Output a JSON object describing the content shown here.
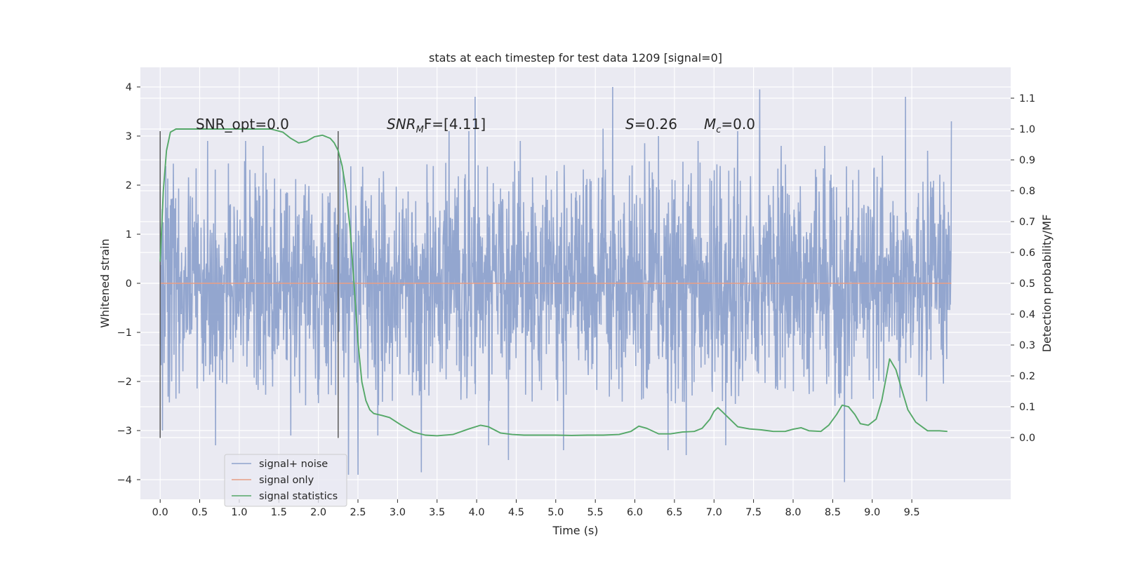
{
  "chart_data": {
    "type": "line",
    "title": "stats at each timestep for test data 1209 [signal=0]",
    "xlabel": "Time (s)",
    "ylabel_left": "Whitened strain",
    "ylabel_right": "Detection probability/MF",
    "xlim": [
      -0.25,
      10.75
    ],
    "ylim_left": [
      -4.4,
      4.4
    ],
    "ylim_right": [
      -0.2,
      1.2
    ],
    "x_ticks": [
      0.0,
      0.5,
      1.0,
      1.5,
      2.0,
      2.5,
      3.0,
      3.5,
      4.0,
      4.5,
      5.0,
      5.5,
      6.0,
      6.5,
      7.0,
      7.5,
      8.0,
      8.5,
      9.0,
      9.5
    ],
    "x_tick_labels": [
      "0.0",
      "0.5",
      "1.0",
      "1.5",
      "2.0",
      "2.5",
      "3.0",
      "3.5",
      "4.0",
      "4.5",
      "5.0",
      "5.5",
      "6.0",
      "6.5",
      "7.0",
      "7.5",
      "8.0",
      "8.5",
      "9.0",
      "9.5"
    ],
    "y_left_ticks": [
      -4,
      -3,
      -2,
      -1,
      0,
      1,
      2,
      3,
      4
    ],
    "y_left_tick_labels": [
      "−4",
      "−3",
      "−2",
      "−1",
      "0",
      "1",
      "2",
      "3",
      "4"
    ],
    "y_right_ticks": [
      0.0,
      0.1,
      0.2,
      0.3,
      0.4,
      0.5,
      0.6,
      0.7,
      0.8,
      0.9,
      1.0,
      1.1
    ],
    "y_right_tick_labels": [
      "0.0",
      "0.1",
      "0.2",
      "0.3",
      "0.4",
      "0.5",
      "0.6",
      "0.7",
      "0.8",
      "0.9",
      "1.0",
      "1.1"
    ],
    "grid": true,
    "legend": {
      "position": "lower-left",
      "entries": [
        {
          "label": "signal+ noise",
          "color": "#8ea2cc"
        },
        {
          "label": "signal only",
          "color": "#e89e85"
        },
        {
          "label": "signal statistics",
          "color": "#55a868"
        }
      ]
    },
    "annotations": {
      "snr_opt": "SNR_opt=0.0",
      "snr_mf_main": "SNR",
      "snr_mf_sub": "M",
      "snr_mf_rest": "F=[4.11]",
      "s_main": "S",
      "s_rest": "=0.26",
      "mc_main": "M",
      "mc_sub": "c",
      "mc_rest": "=0.0"
    },
    "vertical_markers": [
      {
        "x": 0.0,
        "y_range": [
          -3.15,
          3.1
        ],
        "color": "#595959"
      },
      {
        "x": 2.25,
        "y_range": [
          -3.15,
          3.1
        ],
        "color": "#595959"
      }
    ],
    "series": [
      {
        "name": "signal+ noise",
        "axis": "left",
        "color": "#8ea2cc",
        "x_range": [
          0.0,
          10.0
        ],
        "typical_amplitude": 1.3,
        "envelope_amplitude": 2.0,
        "spikes": [
          {
            "x": 0.03,
            "y": -3.0
          },
          {
            "x": 0.6,
            "y": 2.9
          },
          {
            "x": 0.7,
            "y": -3.3
          },
          {
            "x": 1.08,
            "y": 2.9
          },
          {
            "x": 1.3,
            "y": 2.8
          },
          {
            "x": 1.65,
            "y": -3.1
          },
          {
            "x": 2.27,
            "y": 2.5
          },
          {
            "x": 2.38,
            "y": -3.9
          },
          {
            "x": 2.5,
            "y": -3.9
          },
          {
            "x": 2.75,
            "y": -3.1
          },
          {
            "x": 3.3,
            "y": -3.85
          },
          {
            "x": 3.65,
            "y": 3.1
          },
          {
            "x": 3.9,
            "y": 3.1
          },
          {
            "x": 3.98,
            "y": 3.8
          },
          {
            "x": 4.15,
            "y": -3.3
          },
          {
            "x": 4.4,
            "y": -3.6
          },
          {
            "x": 4.55,
            "y": 2.9
          },
          {
            "x": 5.1,
            "y": -3.4
          },
          {
            "x": 5.6,
            "y": 3.15
          },
          {
            "x": 5.72,
            "y": 4.0
          },
          {
            "x": 6.3,
            "y": 3.0
          },
          {
            "x": 6.42,
            "y": -3.4
          },
          {
            "x": 6.65,
            "y": -3.5
          },
          {
            "x": 6.8,
            "y": 2.9
          },
          {
            "x": 7.15,
            "y": -3.3
          },
          {
            "x": 7.3,
            "y": 3.1
          },
          {
            "x": 7.58,
            "y": 3.95
          },
          {
            "x": 7.85,
            "y": 2.8
          },
          {
            "x": 8.4,
            "y": 2.8
          },
          {
            "x": 8.65,
            "y": -4.05
          },
          {
            "x": 9.13,
            "y": 2.6
          },
          {
            "x": 9.42,
            "y": 3.8
          },
          {
            "x": 9.7,
            "y": 2.7
          },
          {
            "x": 10.0,
            "y": 3.3
          }
        ]
      },
      {
        "name": "signal only",
        "axis": "left",
        "color": "#e89e85",
        "x": [
          0.0,
          10.0
        ],
        "y": [
          0.0,
          0.0
        ]
      },
      {
        "name": "signal statistics",
        "axis": "right",
        "color": "#55a868",
        "x": [
          0.0,
          0.04,
          0.08,
          0.13,
          0.2,
          0.3,
          0.5,
          0.8,
          1.1,
          1.4,
          1.55,
          1.65,
          1.75,
          1.85,
          1.95,
          2.05,
          2.15,
          2.2,
          2.25,
          2.3,
          2.35,
          2.4,
          2.45,
          2.5,
          2.55,
          2.6,
          2.65,
          2.7,
          2.8,
          2.9,
          3.05,
          3.2,
          3.35,
          3.5,
          3.7,
          3.9,
          4.05,
          4.15,
          4.3,
          4.45,
          4.6,
          4.8,
          5.0,
          5.2,
          5.4,
          5.6,
          5.8,
          5.95,
          6.05,
          6.15,
          6.3,
          6.45,
          6.6,
          6.75,
          6.85,
          6.95,
          7.0,
          7.05,
          7.1,
          7.2,
          7.3,
          7.45,
          7.6,
          7.75,
          7.9,
          8.0,
          8.1,
          8.2,
          8.35,
          8.45,
          8.55,
          8.62,
          8.7,
          8.78,
          8.85,
          8.95,
          9.05,
          9.12,
          9.18,
          9.22,
          9.3,
          9.38,
          9.45,
          9.55,
          9.7,
          9.85,
          9.95
        ],
        "y": [
          0.57,
          0.8,
          0.93,
          0.99,
          1.0,
          1.0,
          1.0,
          1.0,
          1.0,
          1.0,
          0.99,
          0.97,
          0.955,
          0.96,
          0.975,
          0.98,
          0.97,
          0.955,
          0.93,
          0.88,
          0.8,
          0.68,
          0.5,
          0.31,
          0.18,
          0.12,
          0.09,
          0.078,
          0.072,
          0.065,
          0.04,
          0.018,
          0.008,
          0.006,
          0.01,
          0.028,
          0.04,
          0.035,
          0.015,
          0.01,
          0.008,
          0.008,
          0.008,
          0.007,
          0.008,
          0.008,
          0.01,
          0.02,
          0.037,
          0.03,
          0.012,
          0.012,
          0.018,
          0.02,
          0.03,
          0.06,
          0.085,
          0.097,
          0.085,
          0.06,
          0.035,
          0.028,
          0.025,
          0.02,
          0.02,
          0.027,
          0.032,
          0.022,
          0.02,
          0.04,
          0.075,
          0.105,
          0.1,
          0.075,
          0.045,
          0.04,
          0.06,
          0.12,
          0.2,
          0.255,
          0.22,
          0.15,
          0.09,
          0.05,
          0.022,
          0.022,
          0.02
        ]
      }
    ]
  }
}
